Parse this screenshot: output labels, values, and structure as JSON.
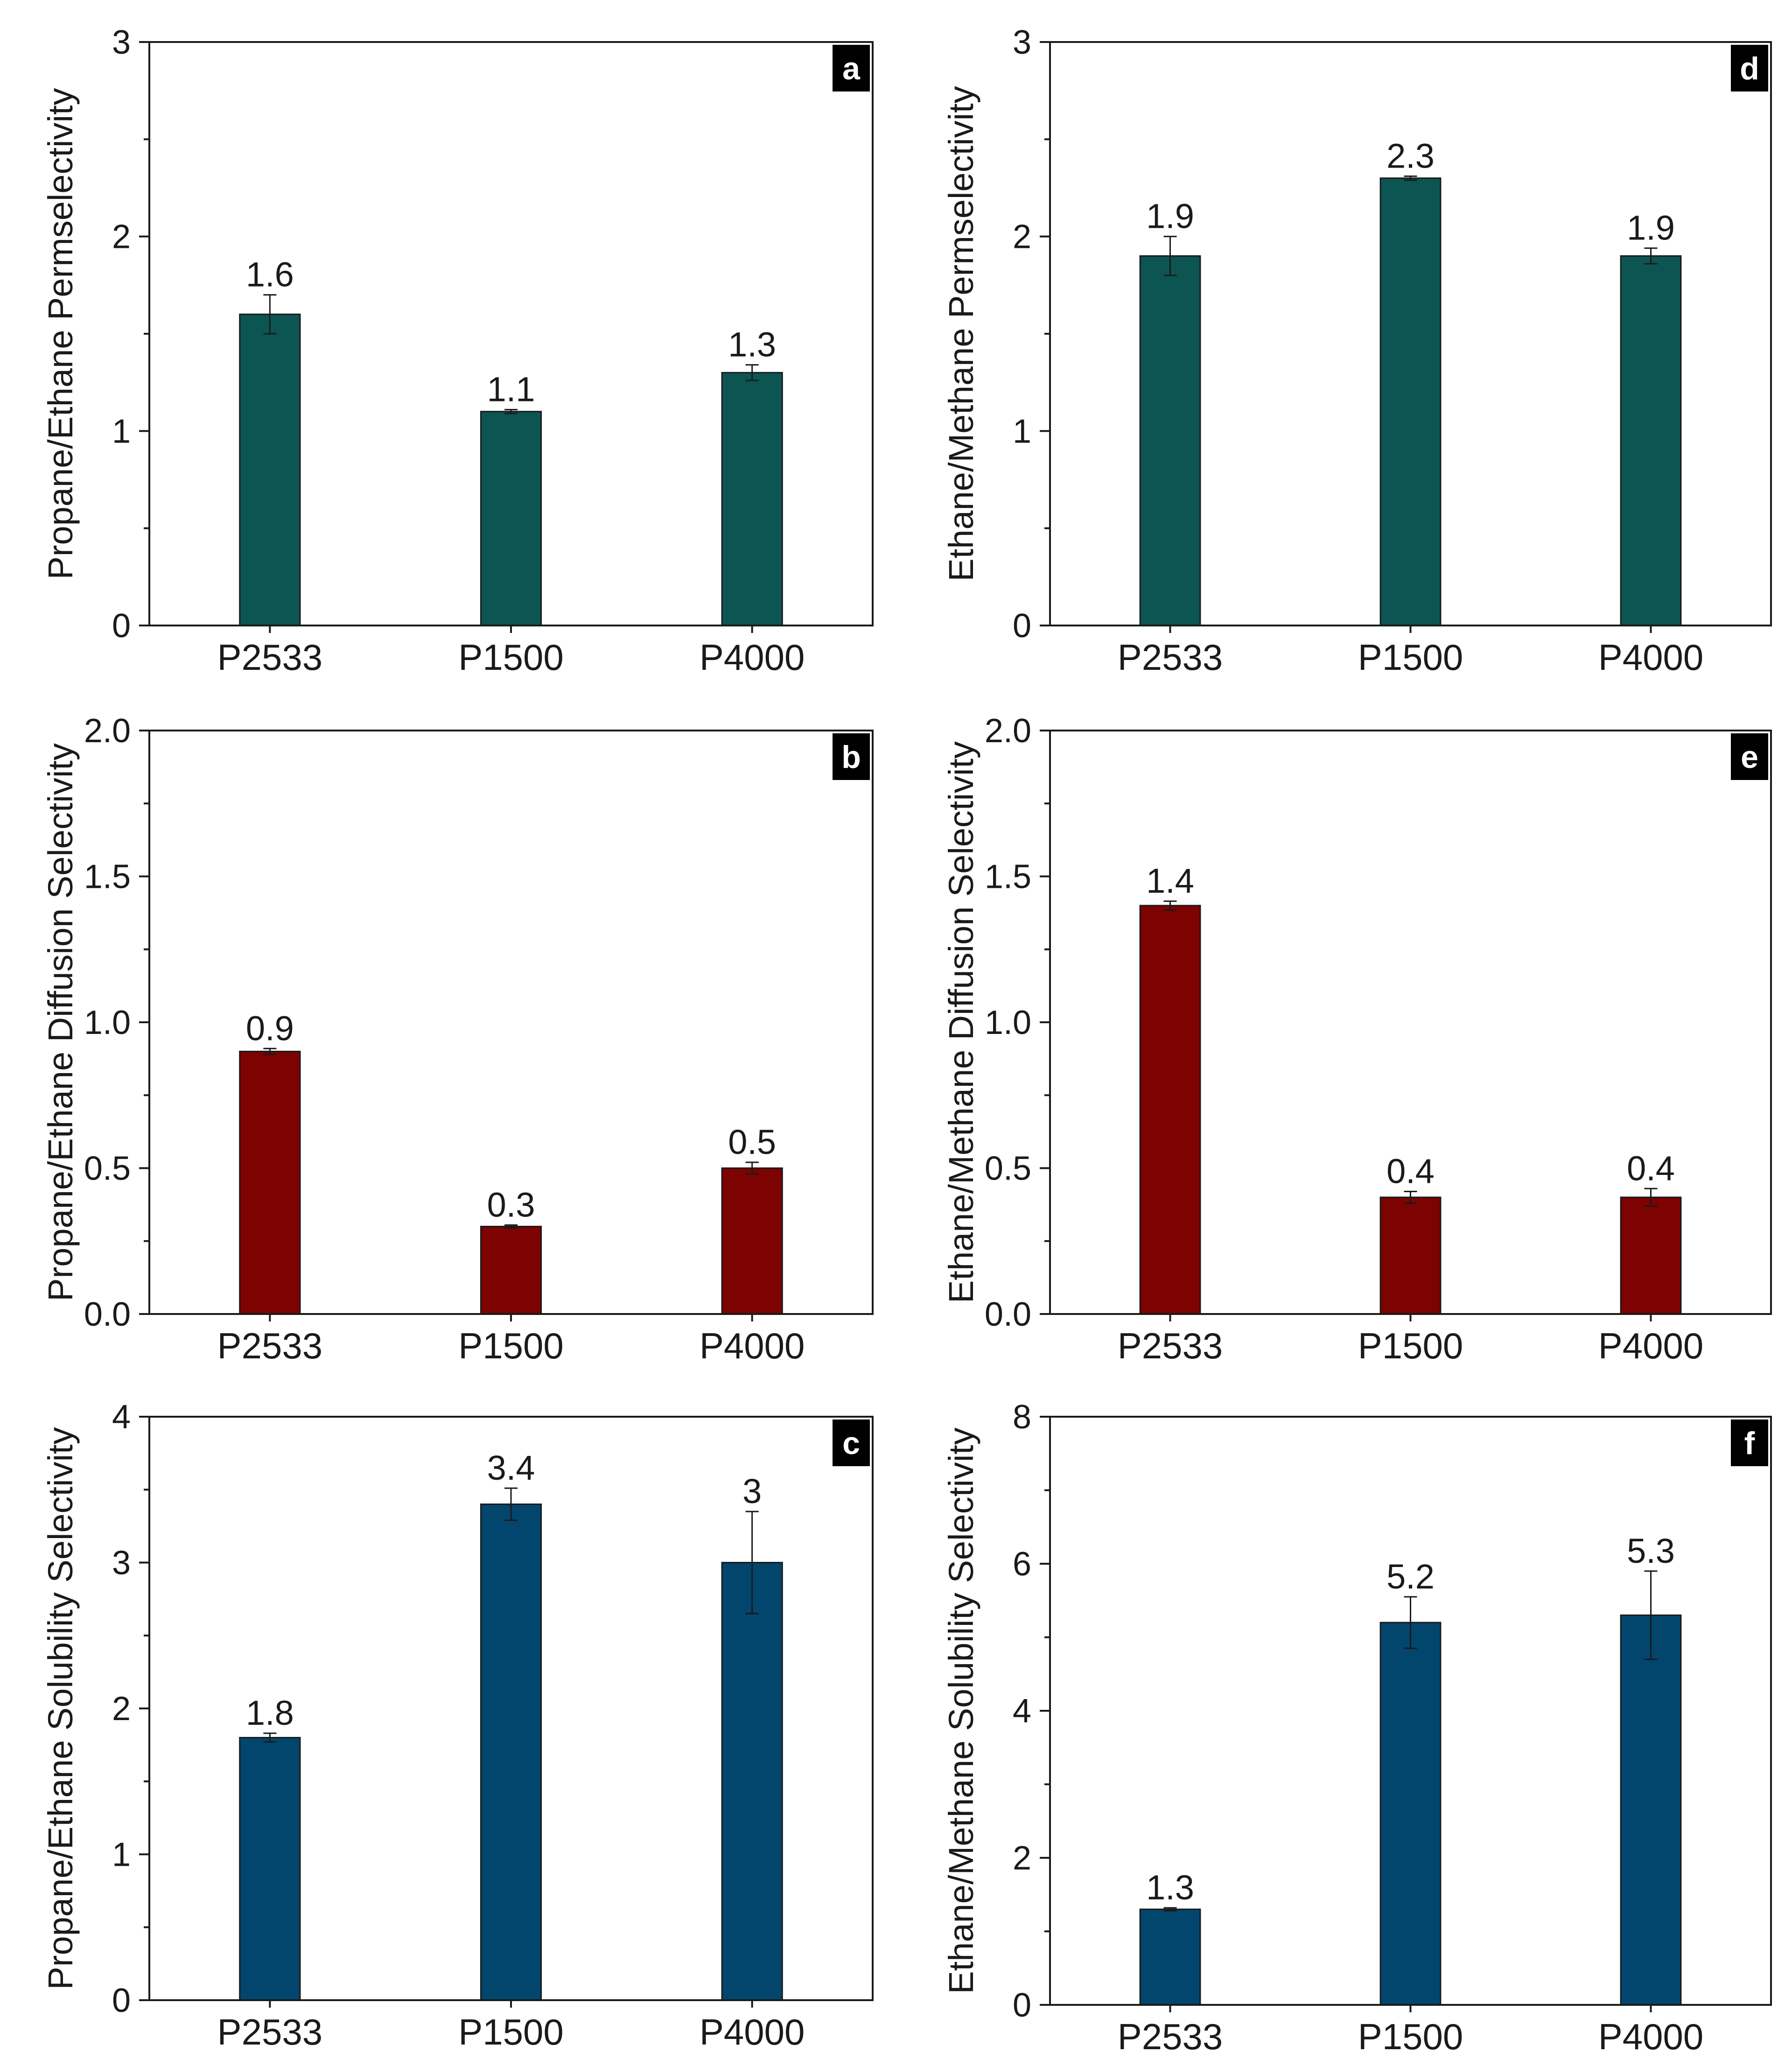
{
  "chart_data": [
    {
      "id": "a",
      "type": "bar",
      "panel_label": "a",
      "categories": [
        "P2533",
        "P1500",
        "P4000"
      ],
      "values": [
        1.6,
        1.1,
        1.3
      ],
      "errors": [
        0.1,
        0.01,
        0.04
      ],
      "data_labels": [
        "1.6",
        "1.1",
        "1.3"
      ],
      "ylabel": "Propane/Ethane Permselectivity",
      "ylim": [
        0,
        3
      ],
      "yticks": [
        0,
        1,
        2,
        3
      ],
      "ytick_labels": [
        "0",
        "1",
        "2",
        "3"
      ],
      "minor_ticks": true,
      "color": "#0c5552"
    },
    {
      "id": "b",
      "type": "bar",
      "panel_label": "b",
      "categories": [
        "P2533",
        "P1500",
        "P4000"
      ],
      "values": [
        0.9,
        0.3,
        0.5
      ],
      "errors": [
        0.01,
        0.005,
        0.02
      ],
      "data_labels": [
        "0.9",
        "0.3",
        "0.5"
      ],
      "ylabel": "Propane/Ethane Diffusion Selectivity",
      "ylim": [
        0,
        2
      ],
      "yticks": [
        0,
        0.5,
        1,
        1.5,
        2
      ],
      "ytick_labels": [
        "0.0",
        "0.5",
        "1.0",
        "1.5",
        "2.0"
      ],
      "minor_ticks": true,
      "color": "#7d0202"
    },
    {
      "id": "c",
      "type": "bar",
      "panel_label": "c",
      "categories": [
        "P2533",
        "P1500",
        "P4000"
      ],
      "values": [
        1.8,
        3.4,
        3.0
      ],
      "errors": [
        0.03,
        0.11,
        0.35
      ],
      "data_labels": [
        "1.8",
        "3.4",
        "3"
      ],
      "ylabel": "Propane/Ethane Solubility Selectivity",
      "ylim": [
        0,
        4
      ],
      "yticks": [
        0,
        1,
        2,
        3,
        4
      ],
      "ytick_labels": [
        "0",
        "1",
        "2",
        "3",
        "4"
      ],
      "minor_ticks": true,
      "color": "#02466d"
    },
    {
      "id": "d",
      "type": "bar",
      "panel_label": "d",
      "categories": [
        "P2533",
        "P1500",
        "P4000"
      ],
      "values": [
        1.9,
        2.3,
        1.9
      ],
      "errors": [
        0.1,
        0.01,
        0.04
      ],
      "data_labels": [
        "1.9",
        "2.3",
        "1.9"
      ],
      "ylabel": "Ethane/Methane Permselectivity",
      "ylim": [
        0,
        3
      ],
      "yticks": [
        0,
        1,
        2,
        3
      ],
      "ytick_labels": [
        "0",
        "1",
        "2",
        "3"
      ],
      "minor_ticks": true,
      "color": "#0c5552"
    },
    {
      "id": "e",
      "type": "bar",
      "panel_label": "e",
      "categories": [
        "P2533",
        "P1500",
        "P4000"
      ],
      "values": [
        1.4,
        0.4,
        0.4
      ],
      "errors": [
        0.015,
        0.02,
        0.03
      ],
      "data_labels": [
        "1.4",
        "0.4",
        "0.4"
      ],
      "ylabel": "Ethane/Methane Diffusion Selectivity",
      "ylim": [
        0,
        2
      ],
      "yticks": [
        0,
        0.5,
        1,
        1.5,
        2
      ],
      "ytick_labels": [
        "0.0",
        "0.5",
        "1.0",
        "1.5",
        "2.0"
      ],
      "minor_ticks": true,
      "color": "#7d0202"
    },
    {
      "id": "f",
      "type": "bar",
      "panel_label": "f",
      "categories": [
        "P2533",
        "P1500",
        "P4000"
      ],
      "values": [
        1.3,
        5.2,
        5.3
      ],
      "errors": [
        0.02,
        0.35,
        0.6
      ],
      "data_labels": [
        "1.3",
        "5.2",
        "5.3"
      ],
      "ylabel": "Ethane/Methane Solubility Selectivity",
      "ylim": [
        0,
        8
      ],
      "yticks": [
        0,
        2,
        4,
        6,
        8
      ],
      "ytick_labels": [
        "0",
        "2",
        "4",
        "6",
        "8"
      ],
      "minor_ticks": true,
      "color": "#02466d"
    }
  ]
}
